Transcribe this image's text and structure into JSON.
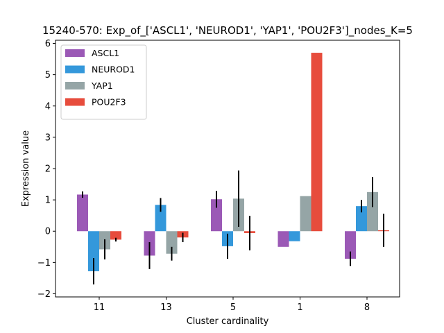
{
  "chart_data": {
    "type": "bar",
    "title": "15240-570: Exp_of_['ASCL1', 'NEUROD1', 'YAP1', 'POU2F3']_nodes_K=5",
    "xlabel": "Cluster cardinality",
    "ylabel": "Expression value",
    "categories": [
      "11",
      "13",
      "5",
      "1",
      "8"
    ],
    "ylim": [
      -2.1,
      6.1
    ],
    "yticks": [
      -2,
      -1,
      0,
      1,
      2,
      3,
      4,
      5,
      6
    ],
    "legend_position": "top-left",
    "series": [
      {
        "name": "ASCL1",
        "color": "#9b59b6",
        "values": [
          1.17,
          -0.78,
          1.02,
          -0.5,
          -0.88
        ],
        "errors": [
          0.1,
          0.43,
          0.27,
          null,
          0.23
        ]
      },
      {
        "name": "NEUROD1",
        "color": "#3498db",
        "values": [
          -1.28,
          0.84,
          -0.48,
          -0.32,
          0.8
        ],
        "errors": [
          0.42,
          0.22,
          0.4,
          null,
          0.2
        ]
      },
      {
        "name": "YAP1",
        "color": "#95a5a6",
        "values": [
          -0.58,
          -0.72,
          1.04,
          1.12,
          1.25
        ],
        "errors": [
          0.32,
          0.22,
          0.9,
          null,
          0.48
        ]
      },
      {
        "name": "POU2F3",
        "color": "#e74c3c",
        "values": [
          -0.27,
          -0.2,
          -0.06,
          5.7,
          0.03
        ],
        "errors": [
          0.06,
          0.15,
          0.55,
          null,
          0.53
        ]
      }
    ]
  }
}
